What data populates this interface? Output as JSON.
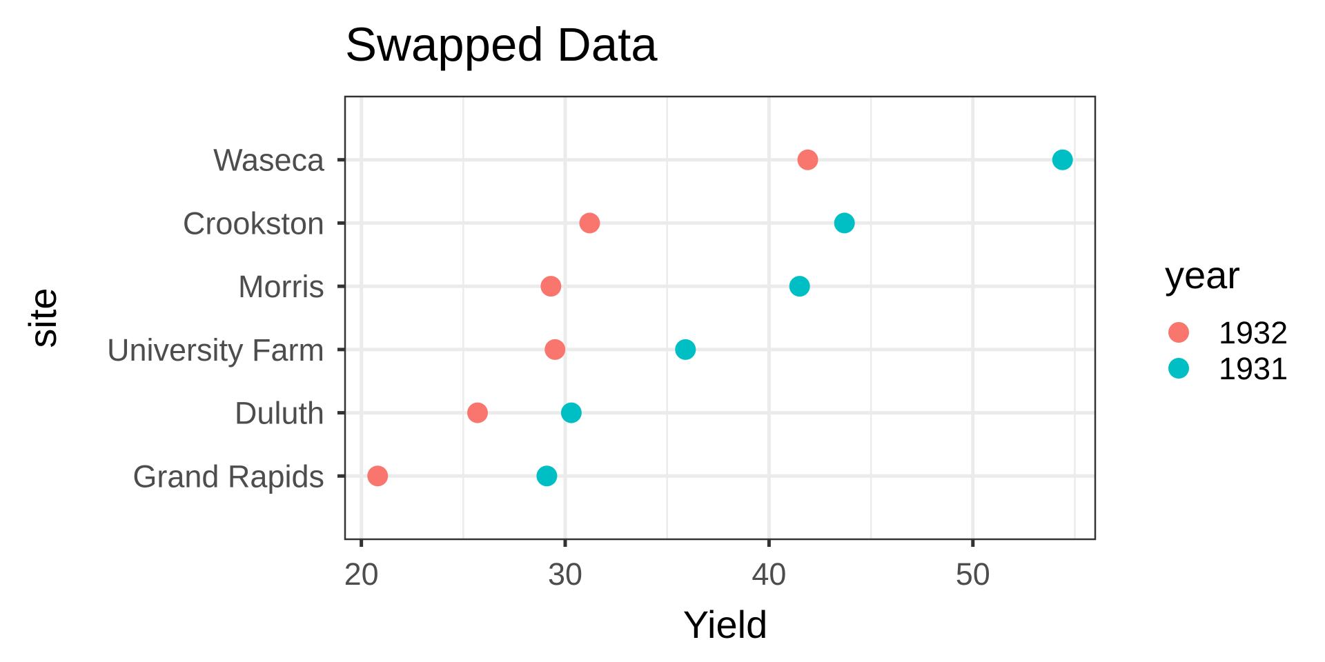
{
  "chart_data": {
    "type": "scatter",
    "title": "Swapped Data",
    "xlabel": "Yield",
    "ylabel": "site",
    "categories": [
      "Grand Rapids",
      "Duluth",
      "University Farm",
      "Morris",
      "Crookston",
      "Waseca"
    ],
    "xlim": [
      19.2,
      56.0
    ],
    "xticks": [
      20,
      30,
      40,
      50
    ],
    "xtick_labels": [
      "20",
      "30",
      "40",
      "50"
    ],
    "grid": true,
    "legend": {
      "title": "year",
      "placement": "right"
    },
    "series": [
      {
        "name": "1932",
        "color": "#F8766D",
        "values": [
          20.8,
          25.7,
          29.5,
          29.3,
          31.2,
          41.9
        ]
      },
      {
        "name": "1931",
        "color": "#00BFC4",
        "values": [
          29.1,
          30.3,
          35.9,
          41.5,
          43.7,
          54.4
        ]
      }
    ]
  }
}
